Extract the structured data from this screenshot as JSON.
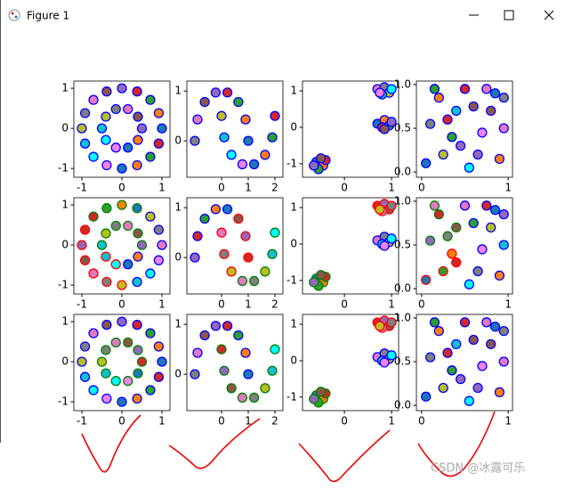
{
  "window": {
    "title": "Figure 1"
  },
  "watermark": "CSDN @冰露可乐",
  "marker_fills": [
    "#1f77b4",
    "#ff7f0e",
    "#2ca02c",
    "#d62728",
    "#9467bd",
    "#8c564b",
    "#e377c2",
    "#7f7f7f",
    "#bcbd22",
    "#17becf",
    "#00ffff",
    "#ee82ee"
  ],
  "chart_data": [
    {
      "type": "scatter",
      "xlim": [
        -1.2,
        1.2
      ],
      "ylim": [
        -1.22,
        1.18
      ],
      "xticks": [
        -1,
        0,
        1
      ],
      "yticks": [
        -1,
        0,
        1
      ],
      "series": [
        {
          "color": "#0000ff",
          "x": [
            1,
            0.92,
            0.71,
            0.38,
            0,
            -0.38,
            -0.71,
            -0.92,
            -1,
            -0.92,
            -0.71,
            -0.38,
            0,
            0.38,
            0.71,
            0.92,
            0.5,
            0.4,
            0.15,
            -0.15,
            -0.4,
            -0.5,
            -0.4,
            -0.15,
            0.15,
            0.4
          ],
          "values": [
            0,
            0.38,
            0.71,
            0.92,
            1,
            0.92,
            0.71,
            0.38,
            0,
            -0.38,
            -0.71,
            -0.92,
            -1,
            -0.92,
            -0.71,
            -0.38,
            0,
            0.29,
            0.48,
            0.48,
            0.29,
            0,
            -0.29,
            -0.48,
            -0.48,
            -0.29
          ]
        }
      ]
    },
    {
      "type": "scatter",
      "xlim": [
        -1.3,
        2.3
      ],
      "ylim": [
        -0.73,
        1.2
      ],
      "xticks": [
        0,
        1,
        2
      ],
      "yticks": [
        0,
        1
      ],
      "series": [
        {
          "color": "#0000ff",
          "x": [
            1,
            0.9,
            0.63,
            0.22,
            -0.22,
            -0.63,
            -0.9,
            -1,
            0,
            0.1,
            0.37,
            0.78,
            1.22,
            1.63,
            1.9,
            2
          ],
          "values": [
            0,
            0.43,
            0.78,
            0.97,
            0.97,
            0.78,
            0.43,
            0,
            0.5,
            0.07,
            -0.28,
            -0.47,
            -0.47,
            -0.28,
            0.07,
            0.5
          ]
        }
      ]
    },
    {
      "type": "scatter",
      "xlim": [
        -0.89,
        1.15
      ],
      "ylim": [
        -1.37,
        1.27
      ],
      "xticks": [
        0,
        1
      ],
      "yticks": [
        -1,
        0,
        1
      ],
      "series": [
        {
          "color": "#0000ff",
          "x": [
            -0.6,
            -0.45,
            -0.55,
            -0.4,
            -0.65,
            -0.5,
            0.7,
            0.85,
            0.95,
            0.8,
            1,
            0.75,
            0.7,
            0.85,
            0.95,
            0.8,
            1,
            0.85
          ],
          "values": [
            -0.95,
            -1.05,
            -1.15,
            -0.9,
            -1.05,
            -0.85,
            1.05,
            1.1,
            0.95,
            0.9,
            1.05,
            0.95,
            0.1,
            0.2,
            0.05,
            0,
            0.15,
            -0.05
          ]
        }
      ]
    },
    {
      "type": "scatter",
      "xlim": [
        -0.06,
        1.05
      ],
      "ylim": [
        -0.06,
        1.04
      ],
      "xticks": [
        0,
        1
      ],
      "yticks": [
        {
          "value": 0,
          "label": "0.0"
        },
        {
          "value": 0.5,
          "label": "0.5"
        },
        {
          "value": 1,
          "label": "1.0"
        }
      ],
      "series": [
        {
          "color": "#0000ff",
          "x": [
            0.05,
            0.2,
            0.35,
            0.5,
            0.65,
            0.8,
            0.95,
            0.1,
            0.25,
            0.4,
            0.55,
            0.7,
            0.85,
            0.9,
            0.15,
            0.3,
            0.45,
            0.6,
            0.75,
            0.95
          ],
          "values": [
            0.1,
            0.85,
            0.4,
            0.95,
            0.2,
            0.7,
            0.5,
            0.55,
            0.2,
            0.7,
            0.05,
            0.45,
            0.9,
            0.15,
            0.95,
            0.6,
            0.3,
            0.75,
            0.95,
            0.85
          ]
        }
      ]
    },
    {
      "type": "scatter",
      "xlim": [
        -1.2,
        1.2
      ],
      "ylim": [
        -1.22,
        1.18
      ],
      "xticks": [
        -1,
        0,
        1
      ],
      "yticks": [
        -1,
        0,
        1
      ],
      "series": [
        {
          "color": "#008000",
          "x": [
            0.38,
            0,
            -0.38,
            -0.71,
            0.5,
            0.4,
            0.15,
            -0.15,
            -0.4,
            -0.5
          ],
          "values": [
            0.92,
            1,
            0.92,
            0.71,
            0,
            0.29,
            0.48,
            0.48,
            0.29,
            0
          ]
        },
        {
          "color": "#ff0000",
          "x": [
            -0.92,
            -1,
            -0.92,
            -0.71,
            -0.38,
            0,
            -0.4,
            -0.15
          ],
          "values": [
            0.38,
            0,
            -0.38,
            -0.71,
            -0.92,
            -1,
            -0.29,
            -0.48
          ]
        },
        {
          "color": "#0000ff",
          "x": [
            1,
            0.92,
            0.71,
            0.38,
            0.71,
            0.92,
            0.15,
            0.4
          ],
          "values": [
            0,
            0.38,
            0.71,
            -0.92,
            -0.71,
            -0.38,
            -0.48,
            -0.29
          ]
        }
      ]
    },
    {
      "type": "scatter",
      "xlim": [
        -1.3,
        2.3
      ],
      "ylim": [
        -0.73,
        1.2
      ],
      "xticks": [
        0,
        1,
        2
      ],
      "yticks": [
        0,
        1
      ],
      "series": [
        {
          "color": "#0000ff",
          "x": [
            0.22,
            -0.22,
            -0.63,
            -0.9,
            -1
          ],
          "values": [
            0.97,
            0.97,
            0.78,
            0.43,
            0
          ]
        },
        {
          "color": "#ff0000",
          "x": [
            1,
            0.9,
            0.63,
            0,
            0.1,
            0.37
          ],
          "values": [
            0,
            0.43,
            0.78,
            0.5,
            0.07,
            -0.28
          ]
        },
        {
          "color": "#008000",
          "x": [
            0.78,
            1.22,
            1.63,
            1.9,
            2
          ],
          "values": [
            -0.47,
            -0.47,
            -0.28,
            0.07,
            0.5
          ]
        }
      ]
    },
    {
      "type": "scatter",
      "xlim": [
        -0.89,
        1.15
      ],
      "ylim": [
        -1.37,
        1.27
      ],
      "xticks": [
        0,
        1
      ],
      "yticks": [
        -1,
        0,
        1
      ],
      "series": [
        {
          "color": "#008000",
          "x": [
            -0.6,
            -0.45,
            -0.55,
            -0.4,
            -0.65,
            -0.5
          ],
          "values": [
            -0.95,
            -1.05,
            -1.15,
            -0.9,
            -1.05,
            -0.85
          ]
        },
        {
          "color": "#ff0000",
          "x": [
            0.7,
            0.85,
            0.95,
            0.8,
            1,
            0.75
          ],
          "values": [
            1.05,
            1.1,
            0.95,
            0.9,
            1.05,
            0.95
          ]
        },
        {
          "color": "#0000ff",
          "x": [
            0.7,
            0.85,
            0.95,
            0.8,
            1,
            0.85
          ],
          "values": [
            0.1,
            0.2,
            0.05,
            0,
            0.15,
            -0.05
          ]
        }
      ]
    },
    {
      "type": "scatter",
      "xlim": [
        -0.06,
        1.05
      ],
      "ylim": [
        -0.06,
        1.04
      ],
      "xticks": [
        0,
        1
      ],
      "yticks": [
        {
          "value": 0,
          "label": "0.0"
        },
        {
          "value": 0.5,
          "label": "0.5"
        },
        {
          "value": 1,
          "label": "1.0"
        }
      ],
      "series": [
        {
          "color": "#ff0000",
          "x": [
            0.05,
            0.35,
            0.25,
            0.4
          ],
          "values": [
            0.1,
            0.4,
            0.2,
            0.3
          ]
        },
        {
          "color": "#008000",
          "x": [
            0.2,
            0.1,
            0.4,
            0.15,
            0.3
          ],
          "values": [
            0.85,
            0.55,
            0.7,
            0.95,
            0.6
          ]
        },
        {
          "color": "#0000ff",
          "x": [
            0.5,
            0.65,
            0.8,
            0.95,
            0.55,
            0.7,
            0.85,
            0.9,
            0.6,
            0.75,
            0.95
          ],
          "values": [
            0.95,
            0.2,
            0.7,
            0.5,
            0.05,
            0.45,
            0.9,
            0.15,
            0.75,
            0.95,
            0.85
          ]
        }
      ]
    },
    {
      "type": "scatter",
      "xlim": [
        -1.2,
        1.2
      ],
      "ylim": [
        -1.22,
        1.18
      ],
      "xticks": [
        -1,
        0,
        1
      ],
      "yticks": [
        -1,
        0,
        1
      ],
      "series": [
        {
          "color": "#0000ff",
          "x": [
            1,
            0.92,
            0.71,
            0.38,
            0,
            -0.38,
            -0.71,
            -0.92,
            -1,
            -0.92,
            -0.71,
            -0.38,
            0,
            0.38,
            0.71,
            0.92
          ],
          "values": [
            0,
            0.38,
            0.71,
            0.92,
            1,
            0.92,
            0.71,
            0.38,
            0,
            -0.38,
            -0.71,
            -0.92,
            -1,
            -0.92,
            -0.71,
            -0.38
          ]
        },
        {
          "color": "#008000",
          "x": [
            0.5,
            0.4,
            0.15,
            -0.15,
            -0.4,
            -0.5,
            -0.4,
            -0.15,
            0.15,
            0.4
          ],
          "values": [
            0,
            0.29,
            0.48,
            0.48,
            0.29,
            0,
            -0.29,
            -0.48,
            -0.48,
            -0.29
          ]
        }
      ]
    },
    {
      "type": "scatter",
      "xlim": [
        -1.3,
        2.3
      ],
      "ylim": [
        -0.73,
        1.2
      ],
      "xticks": [
        0,
        1,
        2
      ],
      "yticks": [
        0,
        1
      ],
      "series": [
        {
          "color": "#0000ff",
          "x": [
            1,
            0.9,
            0.63,
            0.22,
            -0.22,
            -0.63,
            -0.9,
            -1
          ],
          "values": [
            0,
            0.43,
            0.78,
            0.97,
            0.97,
            0.78,
            0.43,
            0
          ]
        },
        {
          "color": "#008000",
          "x": [
            0,
            0.1,
            0.37,
            0.78,
            1.22,
            1.63,
            1.9,
            2
          ],
          "values": [
            0.5,
            0.07,
            -0.28,
            -0.47,
            -0.47,
            -0.28,
            0.07,
            0.5
          ]
        }
      ]
    },
    {
      "type": "scatter",
      "xlim": [
        -0.89,
        1.15
      ],
      "ylim": [
        -1.37,
        1.27
      ],
      "xticks": [
        0,
        1
      ],
      "yticks": [
        -1,
        0,
        1
      ],
      "series": [
        {
          "color": "#008000",
          "x": [
            -0.6,
            -0.45,
            -0.55,
            -0.4,
            -0.65,
            -0.5
          ],
          "values": [
            -0.95,
            -1.05,
            -1.15,
            -0.9,
            -1.05,
            -0.85
          ]
        },
        {
          "color": "#ff0000",
          "x": [
            0.7,
            0.85,
            0.95,
            0.8,
            1,
            0.75
          ],
          "values": [
            1.05,
            1.1,
            0.95,
            0.9,
            1.05,
            0.95
          ]
        },
        {
          "color": "#0000ff",
          "x": [
            0.7,
            0.85,
            0.95,
            0.8,
            1,
            0.85
          ],
          "values": [
            0.1,
            0.2,
            0.05,
            0,
            0.15,
            -0.05
          ]
        }
      ]
    },
    {
      "type": "scatter",
      "xlim": [
        -0.06,
        1.05
      ],
      "ylim": [
        -0.06,
        1.04
      ],
      "xticks": [
        0,
        1
      ],
      "yticks": [
        {
          "value": 0,
          "label": "0.0"
        },
        {
          "value": 0.5,
          "label": "0.5"
        },
        {
          "value": 1,
          "label": "1.0"
        }
      ],
      "series": [
        {
          "color": "#0000ff",
          "x": [
            0.05,
            0.2,
            0.35,
            0.5,
            0.65,
            0.8,
            0.95,
            0.1,
            0.25,
            0.4,
            0.55,
            0.7,
            0.85,
            0.9,
            0.15,
            0.3,
            0.45,
            0.6,
            0.75,
            0.95
          ],
          "values": [
            0.1,
            0.85,
            0.4,
            0.95,
            0.2,
            0.7,
            0.5,
            0.55,
            0.2,
            0.7,
            0.05,
            0.45,
            0.9,
            0.15,
            0.95,
            0.6,
            0.3,
            0.75,
            0.95,
            0.85
          ]
        }
      ]
    }
  ]
}
